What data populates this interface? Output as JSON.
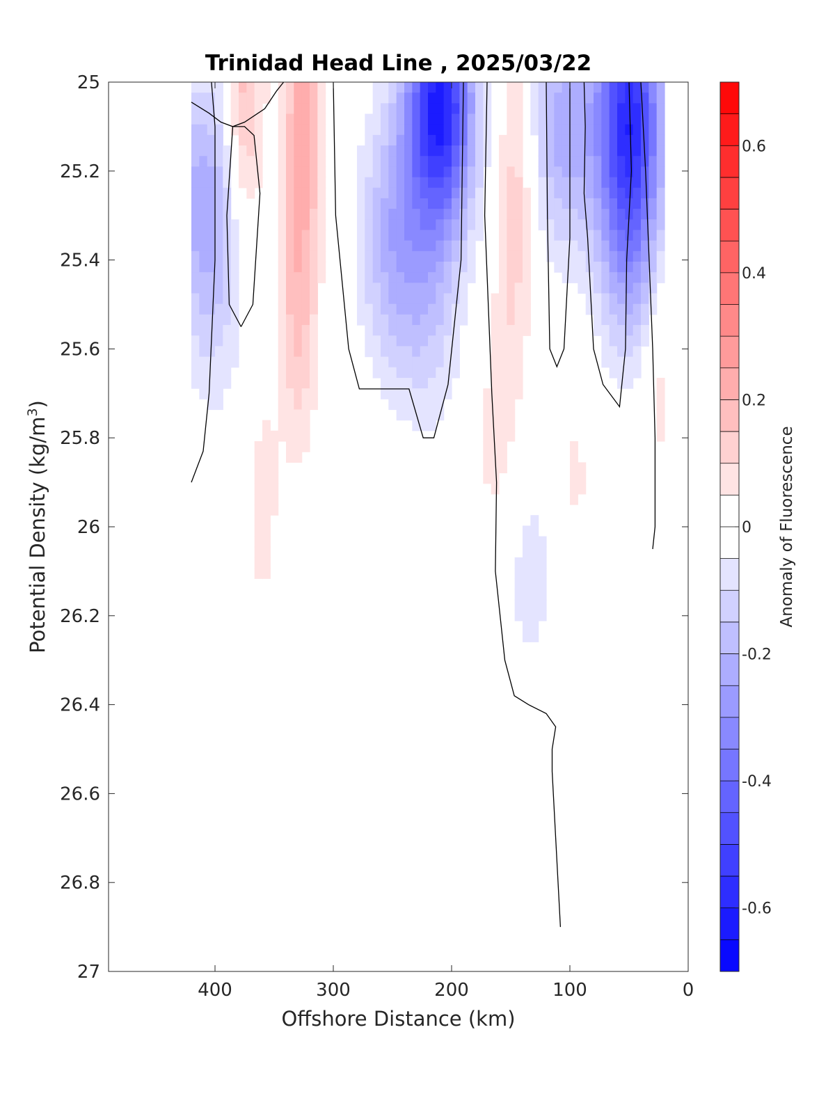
{
  "chart_data": {
    "type": "heatmap",
    "title": "Trinidad Head Line , 2025/03/22",
    "xlabel": "Offshore Distance (km)",
    "ylabel": "Potential Density (kg/m",
    "ylabel_sup": "3",
    "ylabel_close": ")",
    "colorbar_label": "Anomaly of Fluorescence",
    "xlim": [
      490,
      0
    ],
    "ylim": [
      25,
      27
    ],
    "x_reversed": true,
    "y_reversed": true,
    "x_ticks": [
      400,
      300,
      200,
      100,
      0
    ],
    "x_tick_labels": [
      "400",
      "300",
      "200",
      "100",
      "0"
    ],
    "y_ticks": [
      25,
      25.2,
      25.4,
      25.6,
      25.8,
      26,
      26.2,
      26.4,
      26.6,
      26.8,
      27
    ],
    "y_tick_labels": [
      "25",
      "25.2",
      "25.4",
      "25.6",
      "25.8",
      "26",
      "26.2",
      "26.4",
      "26.6",
      "26.8",
      "27"
    ],
    "colorbar_range": [
      -0.7,
      0.7
    ],
    "colorbar_step": 0.05,
    "colorbar_ticks": [
      0.6,
      0.4,
      0.2,
      0,
      -0.2,
      -0.4,
      -0.6
    ],
    "colorbar_tick_labels": [
      "0.6",
      "0.4",
      "0.2",
      "0",
      "-0.2",
      "-0.4",
      "-0.6"
    ],
    "colormap": [
      "#0000ff",
      "#ffffff",
      "#ff0000"
    ],
    "contour_level": 0,
    "data_extent": {
      "x": [
        420,
        20
      ],
      "y": [
        25,
        26.9
      ]
    },
    "features": [
      {
        "kind": "positive",
        "x": 375,
        "y": 25.02,
        "amp": 0.18
      },
      {
        "kind": "positive",
        "x": 325,
        "y": 25.05,
        "amp": 0.22
      },
      {
        "kind": "positive",
        "x": 330,
        "y": 25.5,
        "amp": 0.16
      },
      {
        "kind": "positive",
        "x": 360,
        "y": 25.95,
        "amp": 0.07
      },
      {
        "kind": "positive",
        "x": 145,
        "y": 25.2,
        "amp": 0.12
      },
      {
        "kind": "positive",
        "x": 150,
        "y": 25.6,
        "amp": 0.06
      },
      {
        "kind": "positive",
        "x": 165,
        "y": 25.85,
        "amp": 0.06
      },
      {
        "kind": "positive",
        "x": 95,
        "y": 25.9,
        "amp": 0.06
      },
      {
        "kind": "positive",
        "x": 25,
        "y": 25.6,
        "amp": 0.09
      },
      {
        "kind": "negative",
        "x": 210,
        "y": 25.05,
        "amp": -0.62
      },
      {
        "kind": "negative",
        "x": 250,
        "y": 25.35,
        "amp": -0.2
      },
      {
        "kind": "negative",
        "x": 220,
        "y": 25.5,
        "amp": -0.12
      },
      {
        "kind": "negative",
        "x": 410,
        "y": 25.25,
        "amp": -0.2
      },
      {
        "kind": "negative",
        "x": 400,
        "y": 25.5,
        "amp": -0.08
      },
      {
        "kind": "negative",
        "x": 105,
        "y": 25.1,
        "amp": -0.22
      },
      {
        "kind": "negative",
        "x": 50,
        "y": 25.05,
        "amp": -0.5
      },
      {
        "kind": "negative",
        "x": 48,
        "y": 25.35,
        "amp": -0.25
      },
      {
        "kind": "negative",
        "x": 135,
        "y": 26.1,
        "amp": -0.07
      }
    ],
    "zero_contours": [
      [
        [
          420,
          25.045
        ],
        [
          405,
          25.07
        ],
        [
          395,
          25.09
        ],
        [
          385,
          25.1
        ],
        [
          375,
          25.09
        ],
        [
          358,
          25.06
        ],
        [
          348,
          25.02
        ],
        [
          342,
          25.0
        ]
      ],
      [
        [
          420,
          25.9
        ],
        [
          410,
          25.83
        ],
        [
          405,
          25.7
        ],
        [
          400,
          25.4
        ],
        [
          400,
          25.1
        ],
        [
          403,
          25.0
        ]
      ],
      [
        [
          378,
          25.55
        ],
        [
          368,
          25.5
        ],
        [
          362,
          25.25
        ],
        [
          367,
          25.12
        ],
        [
          375,
          25.1
        ],
        [
          385,
          25.1
        ],
        [
          390,
          25.3
        ],
        [
          388,
          25.5
        ],
        [
          378,
          25.55
        ]
      ],
      [
        [
          300,
          25.0
        ],
        [
          298,
          25.3
        ],
        [
          287,
          25.6
        ],
        [
          278,
          25.69
        ],
        [
          258,
          25.69
        ],
        [
          236,
          25.69
        ],
        [
          224,
          25.8
        ],
        [
          215,
          25.8
        ],
        [
          203,
          25.68
        ],
        [
          192,
          25.4
        ],
        [
          190,
          25.0
        ]
      ],
      [
        [
          170,
          25.0
        ],
        [
          172,
          25.3
        ],
        [
          166,
          25.7
        ],
        [
          162,
          25.9
        ],
        [
          163,
          26.1
        ],
        [
          155,
          26.3
        ],
        [
          147,
          26.38
        ],
        [
          135,
          26.4
        ],
        [
          120,
          26.42
        ],
        [
          112,
          26.45
        ],
        [
          115,
          26.5
        ],
        [
          115,
          26.55
        ],
        [
          112,
          26.7
        ],
        [
          108,
          26.9
        ]
      ],
      [
        [
          120,
          25.0
        ],
        [
          119,
          25.3
        ],
        [
          117,
          25.6
        ],
        [
          111,
          25.64
        ],
        [
          105,
          25.6
        ],
        [
          100,
          25.35
        ],
        [
          100,
          25.0
        ]
      ],
      [
        [
          88,
          25.0
        ],
        [
          87,
          25.1
        ],
        [
          88,
          25.25
        ],
        [
          85,
          25.35
        ],
        [
          80,
          25.6
        ],
        [
          72,
          25.68
        ],
        [
          58,
          25.73
        ],
        [
          53,
          25.6
        ],
        [
          52,
          25.4
        ],
        [
          48,
          25.2
        ],
        [
          50,
          25.0
        ]
      ],
      [
        [
          40,
          25.0
        ],
        [
          36,
          25.2
        ],
        [
          30,
          25.6
        ],
        [
          28,
          25.8
        ],
        [
          28,
          26.0
        ],
        [
          30,
          26.05
        ]
      ]
    ]
  }
}
